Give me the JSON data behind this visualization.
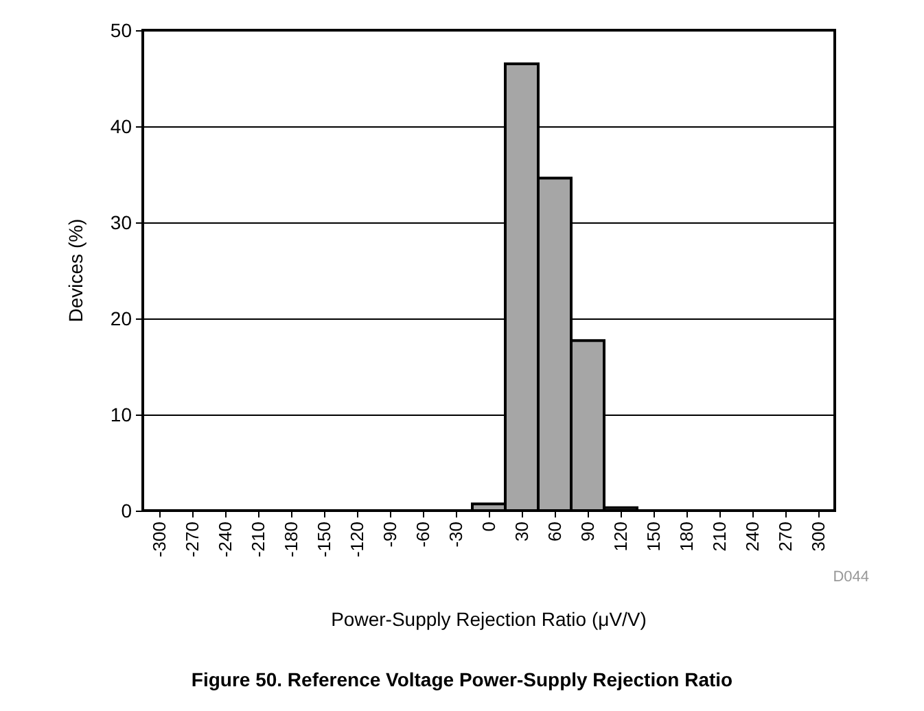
{
  "chart_data": {
    "type": "histogram",
    "xlabel": "Power-Supply Rejection Ratio (μV/V)",
    "ylabel": "Devices (%)",
    "bins": [
      -315,
      -285,
      -255,
      -225,
      -195,
      -165,
      -135,
      -105,
      -75,
      -45,
      -15,
      15,
      45,
      75,
      105,
      135,
      165,
      195,
      225,
      255,
      285,
      315
    ],
    "values": [
      0,
      0,
      0,
      0,
      0,
      0,
      0,
      0,
      0,
      0,
      0.7,
      46.5,
      34.6,
      17.7,
      0.3,
      0,
      0,
      0,
      0,
      0,
      0
    ],
    "color": "#a6a6a6",
    "xlim": [
      -315,
      315
    ],
    "xticks": [
      -300,
      -270,
      -240,
      -210,
      -180,
      -150,
      -120,
      -90,
      -60,
      -30,
      0,
      30,
      60,
      90,
      120,
      150,
      180,
      210,
      240,
      270,
      300
    ],
    "ylim": [
      0,
      50
    ],
    "yticks": [
      0,
      10,
      20,
      30,
      40,
      50
    ],
    "grid": "y",
    "annotations": [
      "D044",
      "Figure 50. Reference Voltage Power-Supply Rejection Ratio"
    ]
  }
}
